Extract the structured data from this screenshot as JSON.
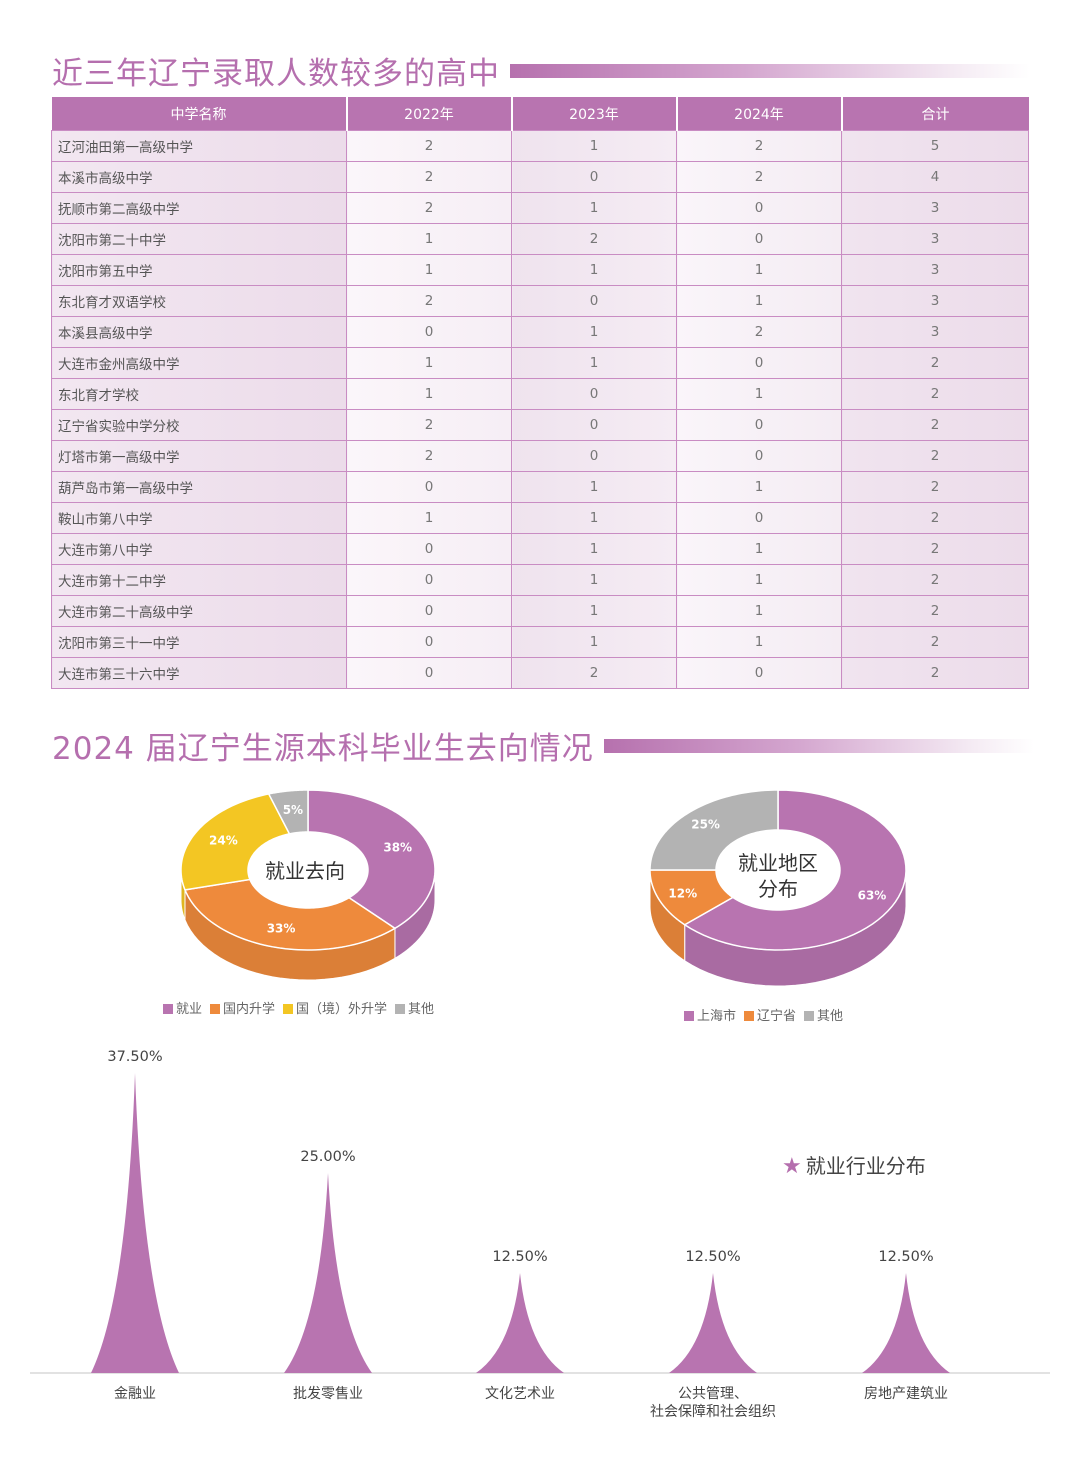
{
  "section1": {
    "title": "近三年辽宁录取人数较多的高中",
    "columns": [
      "中学名称",
      "2022年",
      "2023年",
      "2024年",
      "合计"
    ],
    "rows": [
      [
        "辽河油田第一高级中学",
        "2",
        "1",
        "2",
        "5"
      ],
      [
        "本溪市高级中学",
        "2",
        "0",
        "2",
        "4"
      ],
      [
        "抚顺市第二高级中学",
        "2",
        "1",
        "0",
        "3"
      ],
      [
        "沈阳市第二十中学",
        "1",
        "2",
        "0",
        "3"
      ],
      [
        "沈阳市第五中学",
        "1",
        "1",
        "1",
        "3"
      ],
      [
        "东北育才双语学校",
        "2",
        "0",
        "1",
        "3"
      ],
      [
        "本溪县高级中学",
        "0",
        "1",
        "2",
        "3"
      ],
      [
        "大连市金州高级中学",
        "1",
        "1",
        "0",
        "2"
      ],
      [
        "东北育才学校",
        "1",
        "0",
        "1",
        "2"
      ],
      [
        "辽宁省实验中学分校",
        "2",
        "0",
        "0",
        "2"
      ],
      [
        "灯塔市第一高级中学",
        "2",
        "0",
        "0",
        "2"
      ],
      [
        "葫芦岛市第一高级中学",
        "0",
        "1",
        "1",
        "2"
      ],
      [
        "鞍山市第八中学",
        "1",
        "1",
        "0",
        "2"
      ],
      [
        "大连市第八中学",
        "0",
        "1",
        "1",
        "2"
      ],
      [
        "大连市第十二中学",
        "0",
        "1",
        "1",
        "2"
      ],
      [
        "大连市第二十高级中学",
        "0",
        "1",
        "1",
        "2"
      ],
      [
        "沈阳市第三十一中学",
        "0",
        "1",
        "1",
        "2"
      ],
      [
        "大连市第三十六中学",
        "0",
        "2",
        "0",
        "2"
      ]
    ]
  },
  "section2": {
    "title": "2024 届辽宁生源本科毕业生去向情况"
  },
  "colors": {
    "purple": "#b874b0",
    "orange": "#ee8a3c",
    "yellow": "#f3c623",
    "gray": "#b3b3b3",
    "title": "#b56fae"
  },
  "chart_data": [
    {
      "type": "pie",
      "title": "就业去向",
      "categories": [
        "就业",
        "国内升学",
        "国（境）外升学",
        "其他"
      ],
      "values": [
        38,
        33,
        24,
        5
      ],
      "labels": [
        "38%",
        "33%",
        "24%",
        "5%"
      ],
      "legend": "bottom"
    },
    {
      "type": "pie",
      "title": "就业地区分布",
      "title_lines": [
        "就业地区",
        "分布"
      ],
      "categories": [
        "上海市",
        "辽宁省",
        "其他"
      ],
      "values": [
        63,
        12,
        25
      ],
      "labels": [
        "63%",
        "12%",
        "25%"
      ],
      "legend": "bottom"
    },
    {
      "type": "bar",
      "title": "就业行业分布",
      "categories": [
        "金融业",
        "批发零售业",
        "文化艺术业",
        "公共管理、\n社会保障和社会组织",
        "房地产建筑业"
      ],
      "category_lines": [
        [
          "金融业"
        ],
        [
          "批发零售业"
        ],
        [
          "文化艺术业"
        ],
        [
          "公共管理、",
          "社会保障和社会组织"
        ],
        [
          "房地产建筑业"
        ]
      ],
      "values": [
        37.5,
        25.0,
        12.5,
        12.5,
        12.5
      ],
      "labels": [
        "37.50%",
        "25.00%",
        "12.50%",
        "12.50%",
        "12.50%"
      ],
      "ylim": [
        0,
        37.5
      ],
      "grid": false
    }
  ]
}
